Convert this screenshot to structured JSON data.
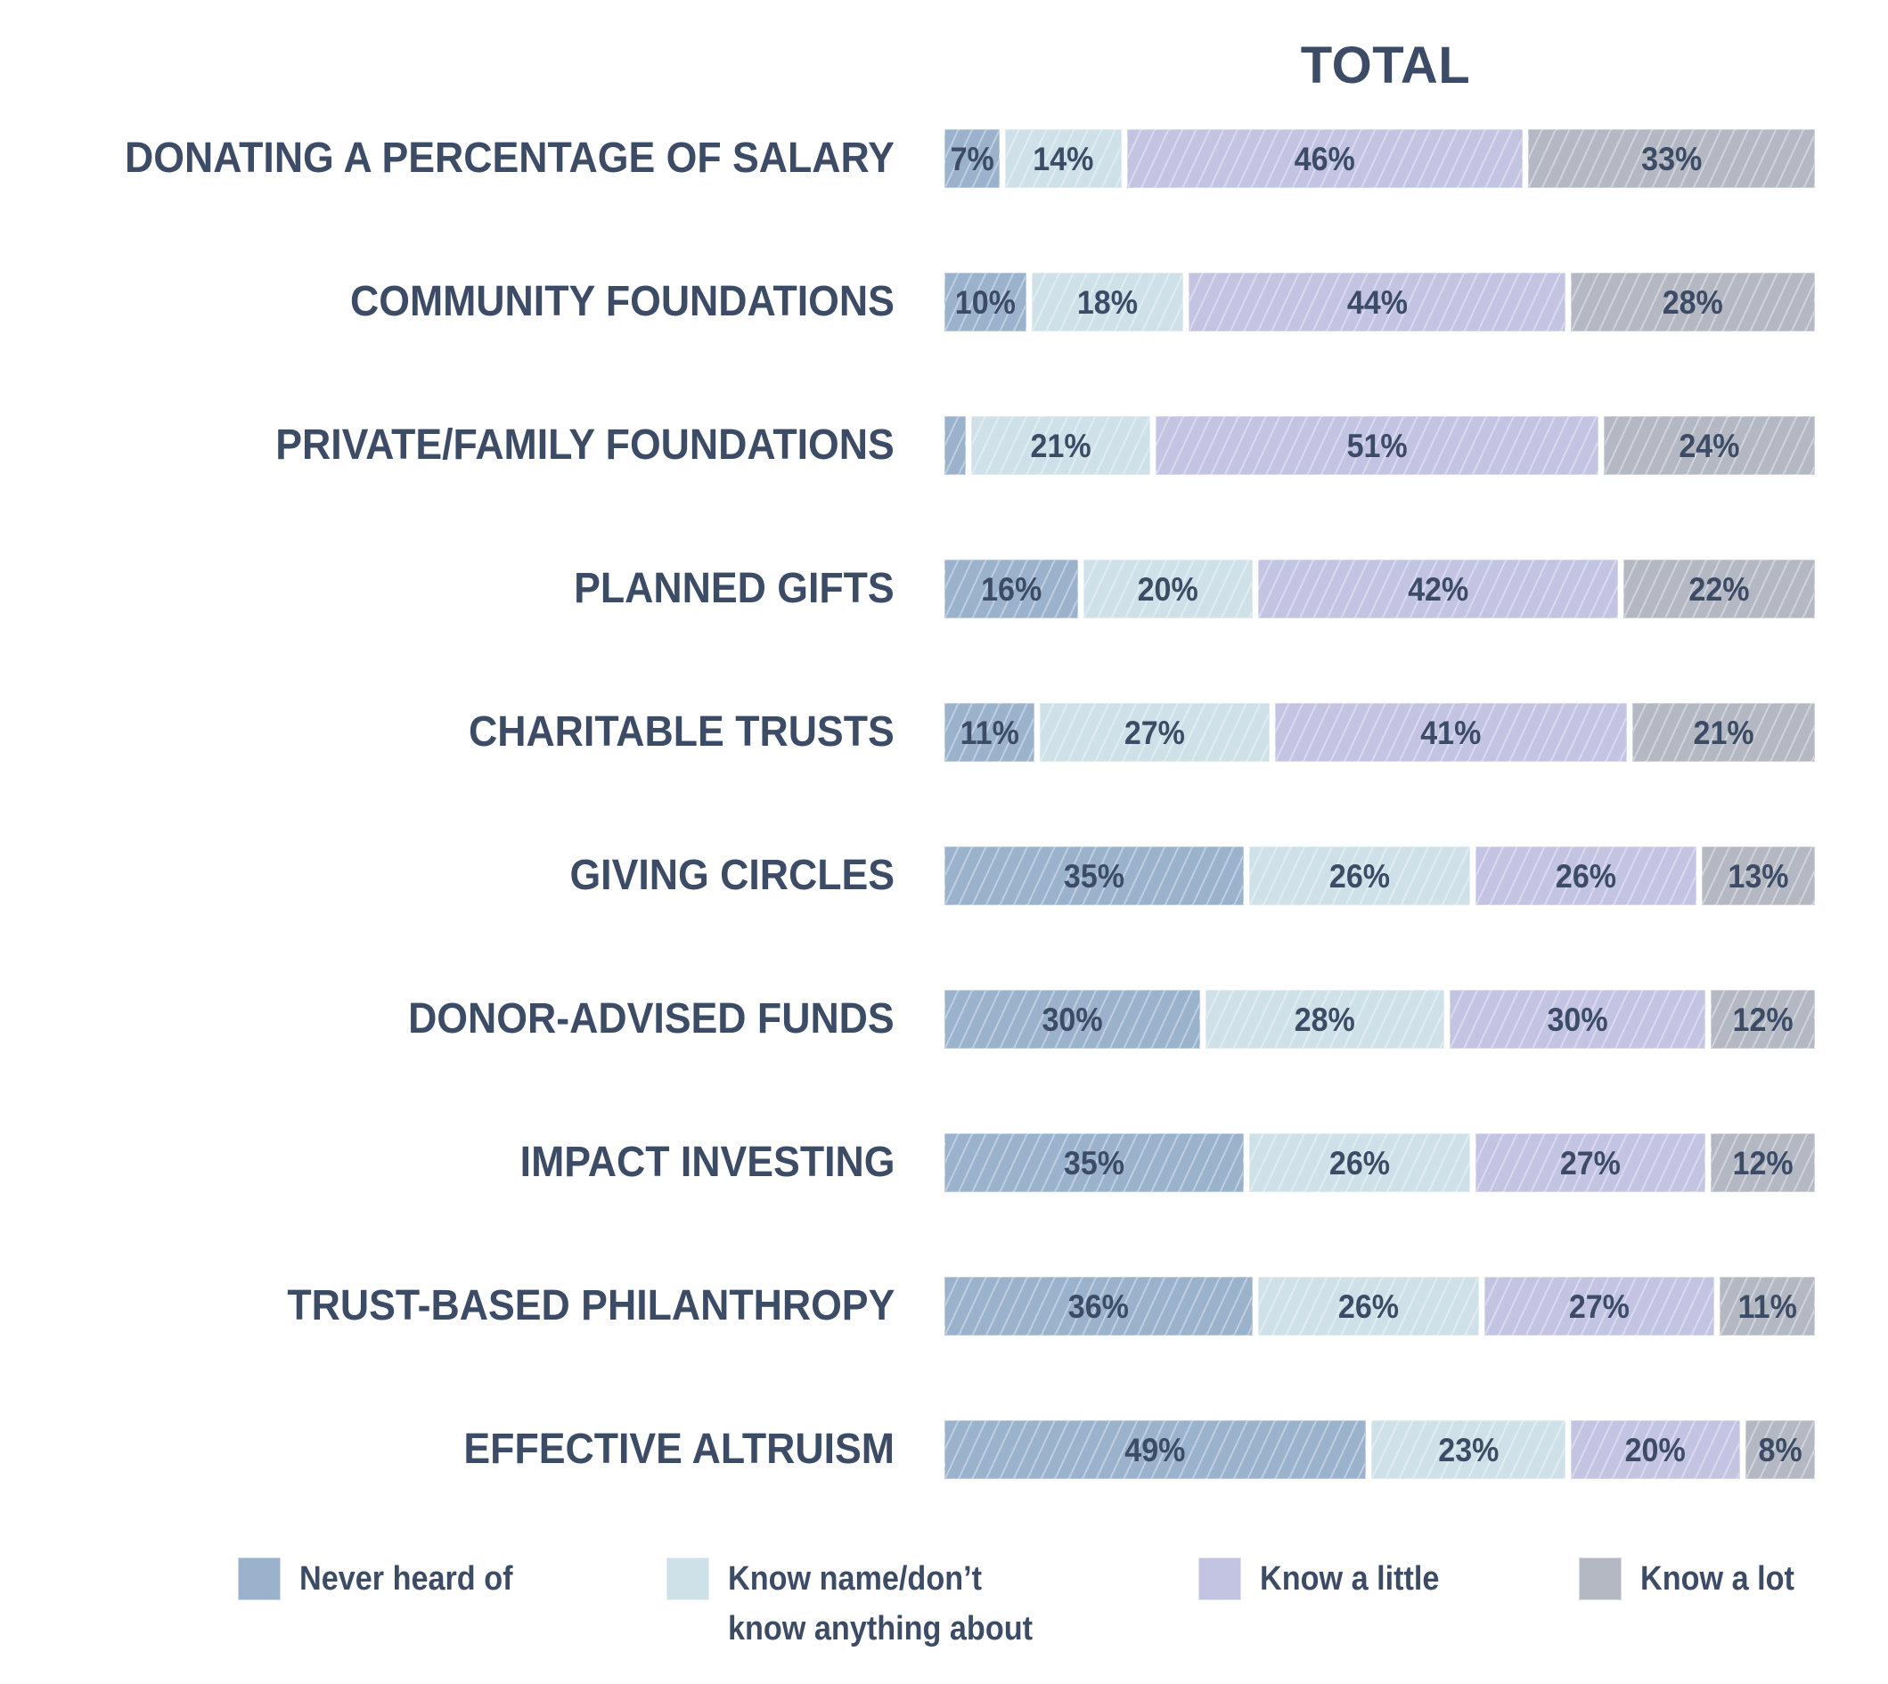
{
  "chart_data": {
    "type": "bar",
    "orientation": "horizontal",
    "stacked": true,
    "title": "TOTAL",
    "xlabel": "",
    "ylabel": "",
    "xlim": [
      0,
      100
    ],
    "grid": false,
    "legend_position": "bottom",
    "categories": [
      "DONATING A PERCENTAGE OF SALARY",
      "COMMUNITY FOUNDATIONS",
      "PRIVATE/FAMILY FOUNDATIONS",
      "PLANNED GIFTS",
      "CHARITABLE TRUSTS",
      "GIVING CIRCLES",
      "DONOR-ADVISED FUNDS",
      "IMPACT INVESTING",
      "TRUST-BASED PHILANTHROPY",
      "EFFECTIVE ALTRUISM"
    ],
    "series": [
      {
        "name": "Never heard of",
        "color": "#9ab2cb",
        "values": [
          7,
          10,
          3,
          16,
          11,
          35,
          30,
          35,
          36,
          49
        ],
        "labels": [
          "7%",
          "10%",
          "",
          "16%",
          "11%",
          "35%",
          "30%",
          "35%",
          "36%",
          "49%"
        ]
      },
      {
        "name": "Know name/don’t know anything about",
        "color": "#cfe1e8",
        "values": [
          14,
          18,
          21,
          20,
          27,
          26,
          28,
          26,
          26,
          23
        ],
        "labels": [
          "14%",
          "18%",
          "21%",
          "20%",
          "27%",
          "26%",
          "28%",
          "26%",
          "26%",
          "23%"
        ]
      },
      {
        "name": "Know a little",
        "color": "#c3c3e2",
        "values": [
          46,
          44,
          51,
          42,
          41,
          26,
          30,
          27,
          27,
          20
        ],
        "labels": [
          "46%",
          "44%",
          "51%",
          "42%",
          "41%",
          "26%",
          "30%",
          "27%",
          "27%",
          "20%"
        ]
      },
      {
        "name": "Know a lot",
        "color": "#b3b8c3",
        "values": [
          33,
          28,
          24,
          22,
          21,
          13,
          12,
          12,
          11,
          8
        ],
        "labels": [
          "33%",
          "28%",
          "24%",
          "22%",
          "21%",
          "13%",
          "12%",
          "12%",
          "11%",
          "8%"
        ]
      }
    ]
  },
  "legend": [
    {
      "label": "Never heard of",
      "color": "#9ab2cb"
    },
    {
      "label": "Know name/don’t\nknow anything about",
      "color": "#cfe1e8"
    },
    {
      "label": "Know a little",
      "color": "#c3c3e2"
    },
    {
      "label": "Know a lot",
      "color": "#b3b8c3"
    }
  ]
}
